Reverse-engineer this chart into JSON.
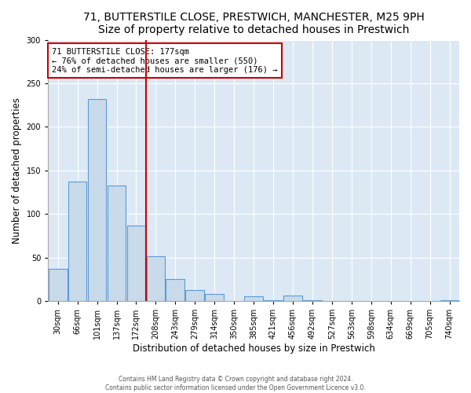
{
  "title": "71, BUTTERSTILE CLOSE, PRESTWICH, MANCHESTER, M25 9PH",
  "subtitle": "Size of property relative to detached houses in Prestwich",
  "xlabel": "Distribution of detached houses by size in Prestwich",
  "ylabel": "Number of detached properties",
  "bin_labels": [
    "30sqm",
    "66sqm",
    "101sqm",
    "137sqm",
    "172sqm",
    "208sqm",
    "243sqm",
    "279sqm",
    "314sqm",
    "350sqm",
    "385sqm",
    "421sqm",
    "456sqm",
    "492sqm",
    "527sqm",
    "563sqm",
    "598sqm",
    "634sqm",
    "669sqm",
    "705sqm",
    "740sqm"
  ],
  "bar_heights": [
    37,
    137,
    232,
    133,
    87,
    51,
    25,
    13,
    8,
    0,
    5,
    1,
    6,
    1,
    0,
    0,
    0,
    0,
    0,
    0,
    1
  ],
  "bar_color": "#c9daea",
  "bar_edge_color": "#5b9bd5",
  "vline_x": 4.5,
  "vline_color": "#cc0000",
  "annotation_title": "71 BUTTERSTILE CLOSE: 177sqm",
  "annotation_line1": "← 76% of detached houses are smaller (550)",
  "annotation_line2": "24% of semi-detached houses are larger (176) →",
  "annotation_box_color": "#cc0000",
  "ylim": [
    0,
    300
  ],
  "yticks": [
    0,
    50,
    100,
    150,
    200,
    250,
    300
  ],
  "grid_color": "#c8d8e8",
  "figure_bg": "#ffffff",
  "plot_bg": "#dce9f5",
  "title_fontsize": 10,
  "tick_fontsize": 7,
  "ylabel_fontsize": 8.5,
  "xlabel_fontsize": 8.5,
  "footer1": "Contains HM Land Registry data © Crown copyright and database right 2024.",
  "footer2": "Contains public sector information licensed under the Open Government Licence v3.0."
}
